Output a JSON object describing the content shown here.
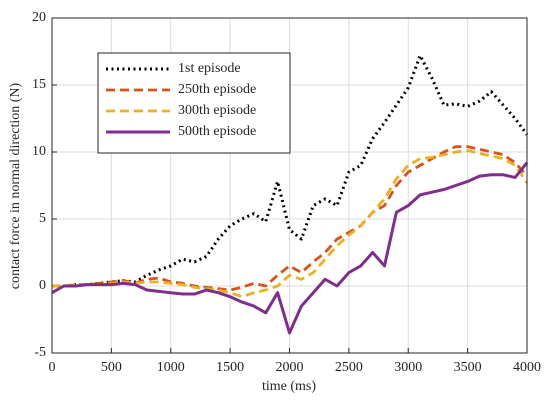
{
  "chart_data": {
    "type": "line",
    "xlabel": "time (ms)",
    "ylabel": "contact force in normal direction (N)",
    "x": [
      0,
      100,
      200,
      300,
      400,
      500,
      600,
      700,
      800,
      900,
      1000,
      1100,
      1200,
      1300,
      1400,
      1500,
      1600,
      1700,
      1800,
      1900,
      2000,
      2100,
      2200,
      2300,
      2400,
      2500,
      2600,
      2700,
      2800,
      2900,
      3000,
      3100,
      3200,
      3300,
      3400,
      3500,
      3600,
      3700,
      3800,
      3900,
      4000
    ],
    "series": [
      {
        "name": "1st episode",
        "color": "#000000",
        "style": "dotted",
        "values": [
          0,
          0,
          0.1,
          0.1,
          0.2,
          0.3,
          0.4,
          0.3,
          0.8,
          1.2,
          1.5,
          2.0,
          1.8,
          2.2,
          3.5,
          4.5,
          5.0,
          5.4,
          4.8,
          7.8,
          4.2,
          3.5,
          6.0,
          6.5,
          6.0,
          8.5,
          9.0,
          11.0,
          12.2,
          13.5,
          14.8,
          17.2,
          15.5,
          13.5,
          13.6,
          13.4,
          13.8,
          14.5,
          13.5,
          12.5,
          11.3
        ]
      },
      {
        "name": "250th episode",
        "color": "#d95319",
        "style": "dashed",
        "values": [
          0,
          0,
          0.1,
          0.1,
          0.2,
          0.3,
          0.4,
          0.2,
          0.5,
          0.6,
          0.3,
          0.2,
          0,
          -0.1,
          -0.2,
          -0.3,
          -0.1,
          0.2,
          0,
          0.8,
          1.5,
          1.0,
          1.8,
          2.5,
          3.5,
          4.0,
          4.5,
          5.5,
          6.0,
          7.5,
          8.5,
          9.0,
          9.5,
          10.0,
          10.4,
          10.4,
          10.2,
          10.0,
          9.8,
          9.2,
          8.2
        ]
      },
      {
        "name": "300th episode",
        "color": "#edb120",
        "style": "dashed",
        "values": [
          0,
          0,
          0.1,
          0.1,
          0.1,
          0.2,
          0.3,
          0.2,
          0.3,
          0.3,
          0.2,
          0.1,
          -0.1,
          -0.2,
          -0.3,
          -0.5,
          -0.8,
          -0.5,
          -0.3,
          0,
          0.8,
          0.5,
          1.0,
          2.0,
          3.0,
          3.8,
          4.5,
          5.5,
          6.5,
          8.0,
          9.0,
          9.5,
          9.6,
          9.8,
          10.0,
          10.1,
          9.9,
          9.7,
          9.5,
          9.0,
          7.7
        ]
      },
      {
        "name": "500th episode",
        "color": "#7e2f8e",
        "style": "solid",
        "values": [
          -0.5,
          0,
          0,
          0.1,
          0.1,
          0.1,
          0.2,
          0.1,
          -0.3,
          -0.4,
          -0.5,
          -0.6,
          -0.6,
          -0.3,
          -0.5,
          -0.8,
          -1.2,
          -1.5,
          -2.0,
          -0.5,
          -3.5,
          -1.5,
          -0.5,
          0.5,
          0,
          1.0,
          1.5,
          2.5,
          1.5,
          5.5,
          6.0,
          6.8,
          7.0,
          7.2,
          7.5,
          7.8,
          8.2,
          8.3,
          8.3,
          8.1,
          9.2
        ]
      }
    ],
    "xlim": [
      0,
      4000
    ],
    "xticks": [
      0,
      500,
      1000,
      1500,
      2000,
      2500,
      3000,
      3500,
      4000
    ],
    "ylim": [
      -5,
      20
    ],
    "yticks": [
      -5,
      0,
      5,
      10,
      15,
      20
    ],
    "grid": true,
    "legend": "upper left"
  }
}
